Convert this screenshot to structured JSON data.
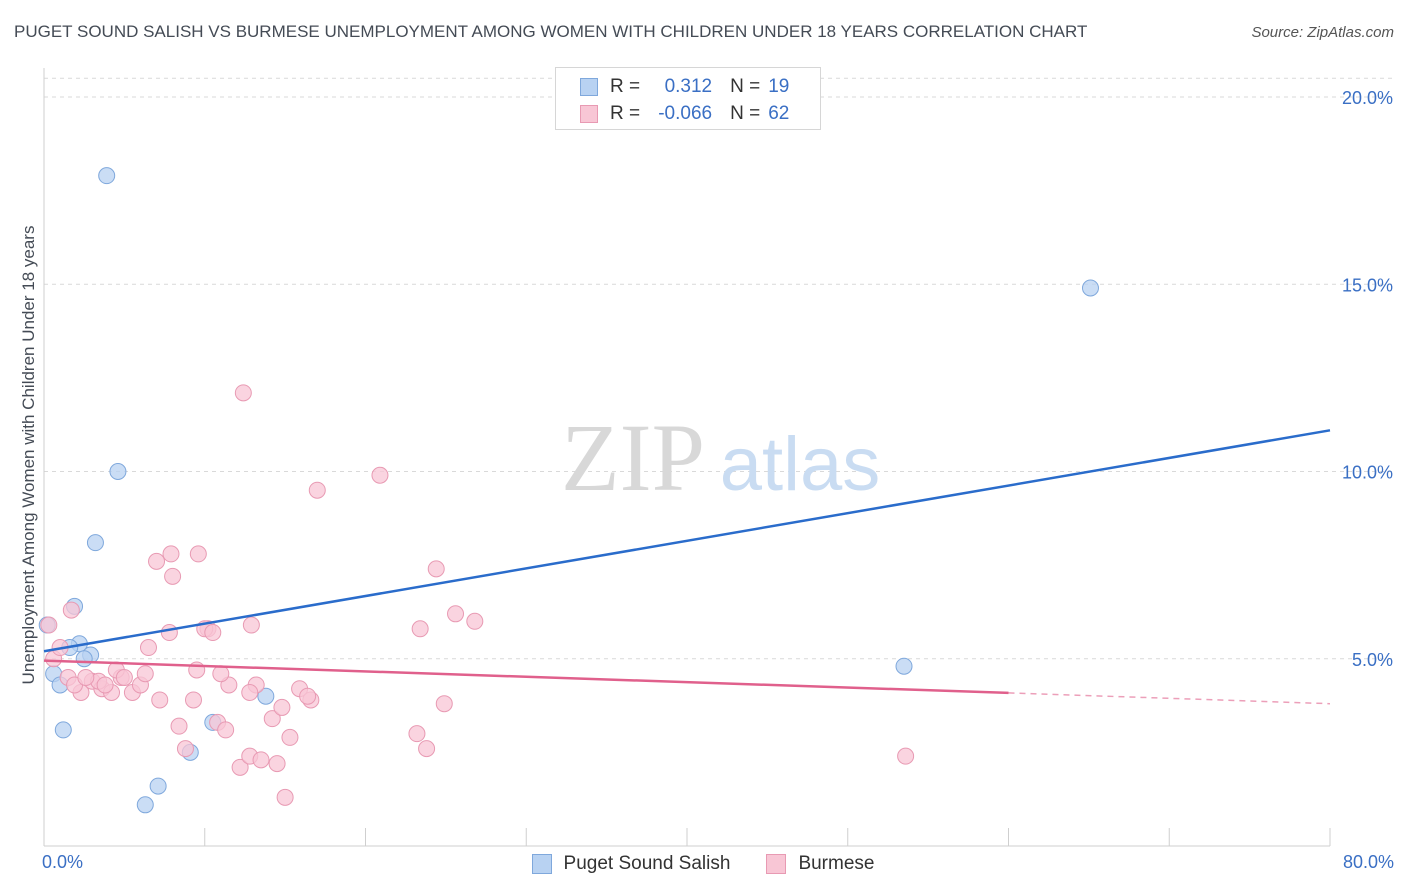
{
  "title": "PUGET SOUND SALISH VS BURMESE UNEMPLOYMENT AMONG WOMEN WITH CHILDREN UNDER 18 YEARS CORRELATION CHART",
  "source": "Source: ZipAtlas.com",
  "watermark": {
    "zip": "ZIP",
    "atlas": "atlas"
  },
  "colors": {
    "blue_fill": "#b8d2f2",
    "blue_stroke": "#7fa8dc",
    "blue_line": "#2a6ccb",
    "pink_fill": "#f8c6d5",
    "pink_stroke": "#e89ab3",
    "pink_line": "#e0608c",
    "tick_text": "#3a6fc4",
    "grid": "#d9d9d9"
  },
  "legend": {
    "rows": [
      {
        "r_label": "R =",
        "r_value": "0.312",
        "n_label": "N =",
        "n_value": "19"
      },
      {
        "r_label": "R =",
        "r_value": "-0.066",
        "n_label": "N =",
        "n_value": "62"
      }
    ]
  },
  "bottom_legend": {
    "items": [
      "Puget Sound Salish",
      "Burmese"
    ]
  },
  "chart_data": {
    "type": "scatter",
    "title": "PUGET SOUND SALISH VS BURMESE UNEMPLOYMENT AMONG WOMEN WITH CHILDREN UNDER 18 YEARS CORRELATION CHART",
    "xlabel": "",
    "ylabel": "Unemployment Among Women with Children Under 18 years",
    "xlim": [
      0,
      80
    ],
    "ylim": [
      0,
      20.5
    ],
    "x_tick_labels": [
      "0.0%",
      "80.0%"
    ],
    "y_ticks": [
      5,
      10,
      15,
      20
    ],
    "y_tick_labels": [
      "5.0%",
      "10.0%",
      "15.0%",
      "20.0%"
    ],
    "grid": true,
    "series": [
      {
        "name": "Puget Sound Salish",
        "color": "blue",
        "r": 0.312,
        "n": 19,
        "trend": {
          "x": [
            0,
            80
          ],
          "y": [
            5.2,
            11.1
          ],
          "dashed_from": null
        },
        "points": [
          [
            3.9,
            17.9
          ],
          [
            65.1,
            14.9
          ],
          [
            4.6,
            10.0
          ],
          [
            3.2,
            8.1
          ],
          [
            1.9,
            6.4
          ],
          [
            0.2,
            5.9
          ],
          [
            2.2,
            5.4
          ],
          [
            2.9,
            5.1
          ],
          [
            1.6,
            5.3
          ],
          [
            0.6,
            4.6
          ],
          [
            1.0,
            4.3
          ],
          [
            13.8,
            4.0
          ],
          [
            53.5,
            4.8
          ],
          [
            10.5,
            3.3
          ],
          [
            1.2,
            3.1
          ],
          [
            9.1,
            2.5
          ],
          [
            7.1,
            1.6
          ],
          [
            6.3,
            1.1
          ],
          [
            2.5,
            5.0
          ]
        ]
      },
      {
        "name": "Burmese",
        "color": "pink",
        "r": -0.066,
        "n": 62,
        "trend": {
          "x": [
            0,
            80
          ],
          "y": [
            4.95,
            3.8
          ],
          "dashed_from": 60
        },
        "points": [
          [
            0.3,
            5.9
          ],
          [
            0.6,
            5.0
          ],
          [
            1.0,
            5.3
          ],
          [
            1.5,
            4.5
          ],
          [
            2.3,
            4.1
          ],
          [
            3.0,
            4.4
          ],
          [
            3.6,
            4.2
          ],
          [
            4.2,
            4.1
          ],
          [
            4.8,
            4.5
          ],
          [
            5.5,
            4.1
          ],
          [
            6.0,
            4.3
          ],
          [
            6.3,
            4.6
          ],
          [
            7.2,
            3.9
          ],
          [
            7.8,
            5.7
          ],
          [
            8.4,
            3.2
          ],
          [
            8.8,
            2.6
          ],
          [
            9.3,
            3.9
          ],
          [
            9.5,
            4.7
          ],
          [
            10.2,
            5.8
          ],
          [
            10.8,
            3.3
          ],
          [
            11.5,
            4.3
          ],
          [
            12.2,
            2.1
          ],
          [
            12.8,
            2.4
          ],
          [
            13.5,
            2.3
          ],
          [
            14.2,
            3.4
          ],
          [
            14.8,
            3.7
          ],
          [
            15.3,
            2.9
          ],
          [
            15.9,
            4.2
          ],
          [
            16.6,
            3.9
          ],
          [
            17.0,
            9.5
          ],
          [
            7.0,
            7.6
          ],
          [
            7.9,
            7.8
          ],
          [
            8.0,
            7.2
          ],
          [
            9.6,
            7.8
          ],
          [
            6.5,
            5.3
          ],
          [
            12.4,
            12.1
          ],
          [
            20.9,
            9.9
          ],
          [
            24.4,
            7.4
          ],
          [
            25.6,
            6.2
          ],
          [
            26.8,
            6.0
          ],
          [
            23.4,
            5.8
          ],
          [
            10.0,
            5.8
          ],
          [
            12.9,
            5.9
          ],
          [
            1.7,
            6.3
          ],
          [
            23.2,
            3.0
          ],
          [
            23.8,
            2.6
          ],
          [
            24.9,
            3.8
          ],
          [
            53.6,
            2.4
          ],
          [
            13.2,
            4.3
          ],
          [
            11.3,
            3.1
          ],
          [
            10.5,
            5.7
          ],
          [
            16.4,
            4.0
          ],
          [
            1.9,
            4.3
          ],
          [
            4.5,
            4.7
          ],
          [
            5.0,
            4.5
          ],
          [
            3.4,
            4.4
          ],
          [
            12.8,
            4.1
          ],
          [
            14.5,
            2.2
          ],
          [
            15.0,
            1.3
          ],
          [
            3.8,
            4.3
          ],
          [
            2.6,
            4.5
          ],
          [
            11.0,
            4.6
          ]
        ]
      }
    ]
  }
}
